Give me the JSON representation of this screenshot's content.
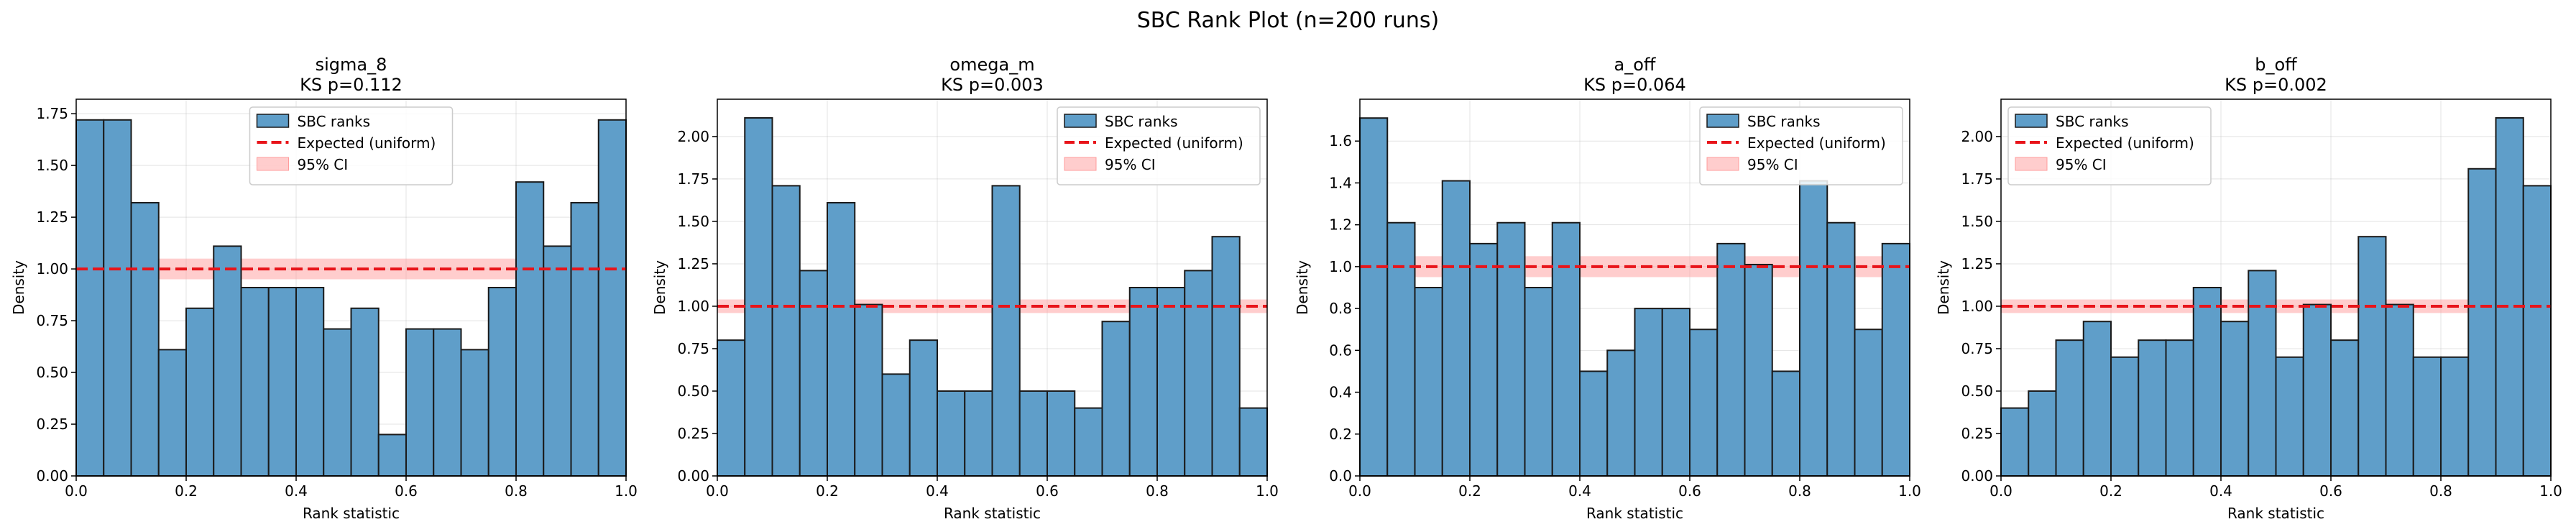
{
  "suptitle": "SBC Rank Plot (n=200 runs)",
  "colors": {
    "bar_fill": "#5f9ec9",
    "bar_edge": "#1a1a1a",
    "expected_line": "#e8141a",
    "ci_band": "#ff9c9c"
  },
  "chart_data": [
    {
      "type": "bar",
      "title": "sigma_8",
      "subtitle": "KS p=0.112",
      "xlabel": "Rank statistic",
      "ylabel": "Density",
      "xlim": [
        0,
        1
      ],
      "ylim": [
        0,
        1.82
      ],
      "xticks": [
        "0.0",
        "0.2",
        "0.4",
        "0.6",
        "0.8",
        "1.0"
      ],
      "yticks": [
        "0.00",
        "0.25",
        "0.50",
        "0.75",
        "1.00",
        "1.25",
        "1.50",
        "1.75"
      ],
      "ytick_values": [
        0,
        0.25,
        0.5,
        0.75,
        1.0,
        1.25,
        1.5,
        1.75
      ],
      "bin_width": 0.05,
      "values": [
        1.72,
        1.72,
        1.32,
        0.61,
        0.81,
        1.11,
        0.91,
        0.91,
        0.91,
        0.71,
        0.81,
        0.2,
        0.71,
        0.71,
        0.61,
        0.91,
        1.42,
        1.11,
        1.32,
        1.72
      ],
      "expected": 1.0,
      "ci": [
        0.95,
        1.05
      ],
      "legend": {
        "position": "upper-center",
        "bars": "SBC ranks",
        "line": "Expected (uniform)",
        "band": "95% CI"
      },
      "grid": true
    },
    {
      "type": "bar",
      "title": "omega_m",
      "subtitle": "KS p=0.003",
      "xlabel": "Rank statistic",
      "ylabel": "Density",
      "xlim": [
        0,
        1
      ],
      "ylim": [
        0,
        2.22
      ],
      "xticks": [
        "0.0",
        "0.2",
        "0.4",
        "0.6",
        "0.8",
        "1.0"
      ],
      "yticks": [
        "0.00",
        "0.25",
        "0.50",
        "0.75",
        "1.00",
        "1.25",
        "1.50",
        "1.75",
        "2.00"
      ],
      "ytick_values": [
        0,
        0.25,
        0.5,
        0.75,
        1.0,
        1.25,
        1.5,
        1.75,
        2.0
      ],
      "bin_width": 0.05,
      "values": [
        0.8,
        2.11,
        1.71,
        1.21,
        1.61,
        1.01,
        0.6,
        0.8,
        0.5,
        0.5,
        1.71,
        0.5,
        0.5,
        0.4,
        0.91,
        1.11,
        1.11,
        1.21,
        1.41,
        0.4
      ],
      "expected": 1.0,
      "ci": [
        0.96,
        1.04
      ],
      "legend": {
        "position": "upper-right",
        "bars": "SBC ranks",
        "line": "Expected (uniform)",
        "band": "95% CI"
      },
      "grid": true
    },
    {
      "type": "bar",
      "title": "a_off",
      "subtitle": "KS p=0.064",
      "xlabel": "Rank statistic",
      "ylabel": "Density",
      "xlim": [
        0,
        1
      ],
      "ylim": [
        0,
        1.8
      ],
      "xticks": [
        "0.0",
        "0.2",
        "0.4",
        "0.6",
        "0.8",
        "1.0"
      ],
      "yticks": [
        "0.0",
        "0.2",
        "0.4",
        "0.6",
        "0.8",
        "1.0",
        "1.2",
        "1.4",
        "1.6"
      ],
      "ytick_values": [
        0,
        0.2,
        0.4,
        0.6,
        0.8,
        1.0,
        1.2,
        1.4,
        1.6
      ],
      "bin_width": 0.05,
      "values": [
        1.71,
        1.21,
        0.9,
        1.41,
        1.11,
        1.21,
        0.9,
        1.21,
        0.5,
        0.6,
        0.8,
        0.8,
        0.7,
        1.11,
        1.01,
        0.5,
        1.41,
        1.21,
        0.7,
        1.11
      ],
      "expected": 1.0,
      "ci": [
        0.95,
        1.05
      ],
      "legend": {
        "position": "upper-right",
        "bars": "SBC ranks",
        "line": "Expected (uniform)",
        "band": "95% CI"
      },
      "grid": true
    },
    {
      "type": "bar",
      "title": "b_off",
      "subtitle": "KS p=0.002",
      "xlabel": "Rank statistic",
      "ylabel": "Density",
      "xlim": [
        0,
        1
      ],
      "ylim": [
        0,
        2.22
      ],
      "xticks": [
        "0.0",
        "0.2",
        "0.4",
        "0.6",
        "0.8",
        "1.0"
      ],
      "yticks": [
        "0.00",
        "0.25",
        "0.50",
        "0.75",
        "1.00",
        "1.25",
        "1.50",
        "1.75",
        "2.00"
      ],
      "ytick_values": [
        0,
        0.25,
        0.5,
        0.75,
        1.0,
        1.25,
        1.5,
        1.75,
        2.0
      ],
      "bin_width": 0.05,
      "values": [
        0.4,
        0.5,
        0.8,
        0.91,
        0.7,
        0.8,
        0.8,
        1.11,
        0.91,
        1.21,
        0.7,
        1.01,
        0.8,
        1.41,
        1.01,
        0.7,
        0.7,
        1.81,
        2.11,
        1.71
      ],
      "expected": 1.0,
      "ci": [
        0.96,
        1.04
      ],
      "legend": {
        "position": "upper-left",
        "bars": "SBC ranks",
        "line": "Expected (uniform)",
        "band": "95% CI"
      },
      "grid": true
    }
  ]
}
